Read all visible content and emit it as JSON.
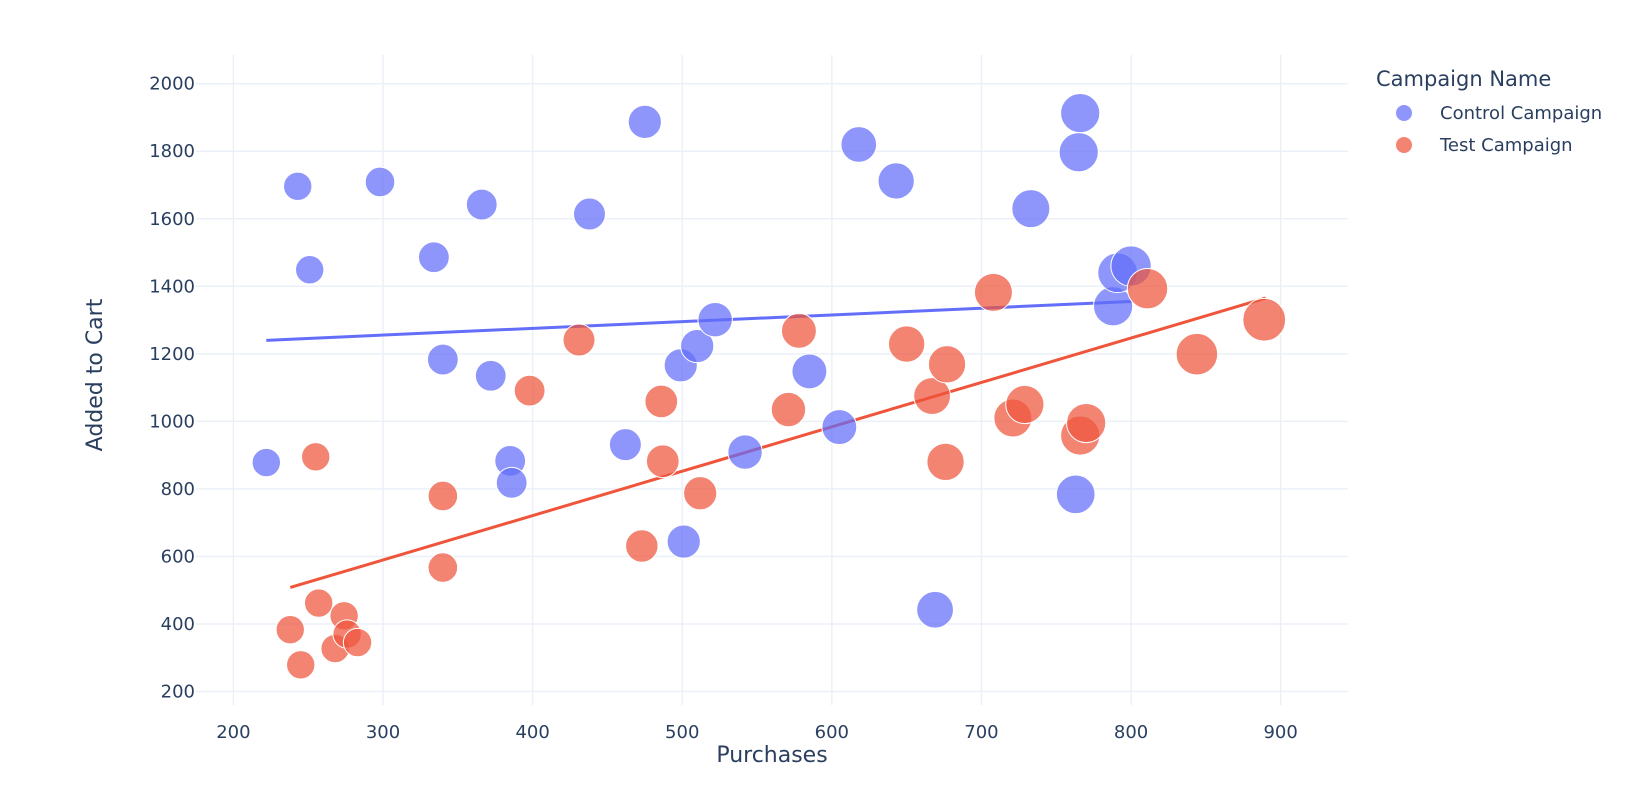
{
  "chart_data": {
    "type": "scatter",
    "title": "",
    "xlabel": "Purchases",
    "ylabel": "Added to Cart",
    "xlim": [
      175,
      945
    ],
    "ylim": [
      160,
      2085
    ],
    "x_ticks": [
      200,
      300,
      400,
      500,
      600,
      700,
      800,
      900
    ],
    "y_ticks": [
      200,
      400,
      600,
      800,
      1000,
      1200,
      1400,
      1600,
      1800,
      2000
    ],
    "grid": true,
    "legend": {
      "title": "Campaign Name",
      "placement": "top-right"
    },
    "marker_size_encoding": "bubble size varies per point",
    "series": [
      {
        "name": "Control Campaign",
        "color": "#636efa",
        "trendline": {
          "x": [
            222,
            800
          ],
          "y": [
            1240,
            1355
          ]
        },
        "points": [
          {
            "x": 222,
            "y": 878,
            "s": 0.35
          },
          {
            "x": 243,
            "y": 1696,
            "s": 0.35
          },
          {
            "x": 251,
            "y": 1449,
            "s": 0.35
          },
          {
            "x": 298,
            "y": 1709,
            "s": 0.4
          },
          {
            "x": 334,
            "y": 1486,
            "s": 0.45
          },
          {
            "x": 340,
            "y": 1183,
            "s": 0.45
          },
          {
            "x": 366,
            "y": 1642,
            "s": 0.45
          },
          {
            "x": 372,
            "y": 1135,
            "s": 0.45
          },
          {
            "x": 385,
            "y": 883,
            "s": 0.45
          },
          {
            "x": 386,
            "y": 818,
            "s": 0.45
          },
          {
            "x": 438,
            "y": 1614,
            "s": 0.5
          },
          {
            "x": 462,
            "y": 931,
            "s": 0.5
          },
          {
            "x": 475,
            "y": 1887,
            "s": 0.55
          },
          {
            "x": 499,
            "y": 1166,
            "s": 0.55
          },
          {
            "x": 501,
            "y": 644,
            "s": 0.55
          },
          {
            "x": 510,
            "y": 1223,
            "s": 0.55
          },
          {
            "x": 522,
            "y": 1301,
            "s": 0.6
          },
          {
            "x": 542,
            "y": 909,
            "s": 0.6
          },
          {
            "x": 585,
            "y": 1148,
            "s": 0.62
          },
          {
            "x": 605,
            "y": 983,
            "s": 0.62
          },
          {
            "x": 618,
            "y": 1820,
            "s": 0.65
          },
          {
            "x": 643,
            "y": 1712,
            "s": 0.68
          },
          {
            "x": 669,
            "y": 442,
            "s": 0.7
          },
          {
            "x": 733,
            "y": 1630,
            "s": 0.75
          },
          {
            "x": 763,
            "y": 784,
            "s": 0.78
          },
          {
            "x": 765,
            "y": 1797,
            "s": 0.8
          },
          {
            "x": 766,
            "y": 1913,
            "s": 0.8
          },
          {
            "x": 788,
            "y": 1341,
            "s": 0.8
          },
          {
            "x": 791,
            "y": 1440,
            "s": 0.82
          },
          {
            "x": 800,
            "y": 1460,
            "s": 0.85
          }
        ]
      },
      {
        "name": "Test Campaign",
        "color": "#ef553b",
        "trendline": {
          "x": [
            238,
            890
          ],
          "y": [
            508,
            1365
          ]
        },
        "points": [
          {
            "x": 238,
            "y": 383,
            "s": 0.35
          },
          {
            "x": 245,
            "y": 279,
            "s": 0.35
          },
          {
            "x": 255,
            "y": 895,
            "s": 0.35
          },
          {
            "x": 257,
            "y": 462,
            "s": 0.35
          },
          {
            "x": 268,
            "y": 327,
            "s": 0.35
          },
          {
            "x": 274,
            "y": 424,
            "s": 0.35
          },
          {
            "x": 276,
            "y": 370,
            "s": 0.35
          },
          {
            "x": 283,
            "y": 345,
            "s": 0.35
          },
          {
            "x": 340,
            "y": 779,
            "s": 0.4
          },
          {
            "x": 340,
            "y": 567,
            "s": 0.4
          },
          {
            "x": 398,
            "y": 1091,
            "s": 0.45
          },
          {
            "x": 431,
            "y": 1241,
            "s": 0.5
          },
          {
            "x": 473,
            "y": 631,
            "s": 0.52
          },
          {
            "x": 486,
            "y": 1059,
            "s": 0.53
          },
          {
            "x": 487,
            "y": 882,
            "s": 0.53
          },
          {
            "x": 512,
            "y": 787,
            "s": 0.55
          },
          {
            "x": 571,
            "y": 1035,
            "s": 0.6
          },
          {
            "x": 578,
            "y": 1268,
            "s": 0.62
          },
          {
            "x": 650,
            "y": 1229,
            "s": 0.68
          },
          {
            "x": 667,
            "y": 1075,
            "s": 0.7
          },
          {
            "x": 676,
            "y": 880,
            "s": 0.72
          },
          {
            "x": 677,
            "y": 1169,
            "s": 0.72
          },
          {
            "x": 708,
            "y": 1382,
            "s": 0.75
          },
          {
            "x": 721,
            "y": 1010,
            "s": 0.75
          },
          {
            "x": 729,
            "y": 1050,
            "s": 0.76
          },
          {
            "x": 766,
            "y": 958,
            "s": 0.8
          },
          {
            "x": 770,
            "y": 995,
            "s": 0.8
          },
          {
            "x": 811,
            "y": 1393,
            "s": 0.85
          },
          {
            "x": 844,
            "y": 1199,
            "s": 0.9
          },
          {
            "x": 889,
            "y": 1301,
            "s": 0.95
          }
        ]
      }
    ]
  }
}
